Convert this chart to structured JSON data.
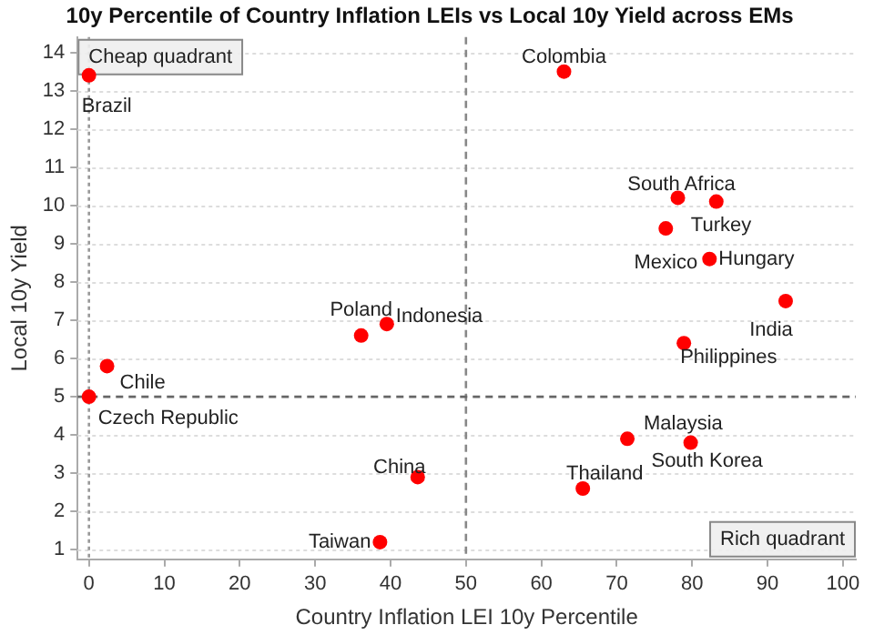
{
  "chart_data": {
    "type": "scatter",
    "title": "10y Percentile of Country Inflation LEIs vs Local 10y Yield across EMs",
    "xlabel": "Country Inflation LEI 10y Percentile",
    "ylabel": "Local 10y Yield",
    "x": [
      0,
      63,
      78.1,
      83.2,
      76.5,
      82.3,
      92.4,
      36.1,
      39.5,
      2.4,
      0,
      43.6,
      38.6,
      78.9,
      71.4,
      79.8,
      65.5
    ],
    "series": [
      {
        "color": "#ff0000",
        "values": [
          13.4,
          13.5,
          10.2,
          10.1,
          9.4,
          8.6,
          7.5,
          6.6,
          6.9,
          5.8,
          5,
          2.9,
          1.2,
          6.4,
          3.9,
          3.8,
          2.6
        ]
      }
    ],
    "xlim": [
      -1.5,
      101.7
    ],
    "ylim": [
      0.75,
      14.4
    ],
    "xticks": [
      0,
      10,
      20,
      30,
      40,
      50,
      60,
      70,
      80,
      90,
      100
    ],
    "yticks": [
      1,
      2,
      3,
      4,
      5,
      6,
      7,
      8,
      9,
      10,
      11,
      12,
      13,
      14
    ],
    "grid": "y",
    "marker": "circle",
    "legend": false,
    "ref_lines": [
      {
        "axis": "x",
        "value": 50,
        "line_style": "dashed",
        "color": "#888888"
      },
      {
        "axis": "y",
        "value": 5,
        "line_style": "dashed",
        "color": "#666666"
      },
      {
        "axis": "x",
        "value": 0,
        "line_style": "dotted",
        "color": "#999999"
      }
    ],
    "annotations": [
      "Cheap quadrant",
      "Rich quadrant",
      {
        "text": "Brazil",
        "x": 0,
        "y": 13.4
      },
      {
        "text": "Colombia",
        "x": 63,
        "y": 13.5
      },
      {
        "text": "South Africa",
        "x": 78.1,
        "y": 10.2
      },
      {
        "text": "Turkey",
        "x": 83.2,
        "y": 10.1
      },
      {
        "text": "Mexico",
        "x": 76.5,
        "y": 9.4
      },
      {
        "text": "Hungary",
        "x": 82.3,
        "y": 8.6
      },
      {
        "text": "India",
        "x": 92.4,
        "y": 7.5
      },
      {
        "text": "Poland",
        "x": 36.1,
        "y": 6.6
      },
      {
        "text": "Indonesia",
        "x": 39.5,
        "y": 6.9
      },
      {
        "text": "Chile",
        "x": 2.4,
        "y": 5.8
      },
      {
        "text": "Czech Republic",
        "x": 0,
        "y": 5
      },
      {
        "text": "China",
        "x": 43.6,
        "y": 2.9
      },
      {
        "text": "Taiwan",
        "x": 38.6,
        "y": 1.2
      },
      {
        "text": "Philippines",
        "x": 78.9,
        "y": 6.4
      },
      {
        "text": "Malaysia",
        "x": 71.4,
        "y": 3.9
      },
      {
        "text": "South Korea",
        "x": 79.8,
        "y": 3.8
      },
      {
        "text": "Thailand",
        "x": 65.5,
        "y": 2.6
      }
    ]
  }
}
